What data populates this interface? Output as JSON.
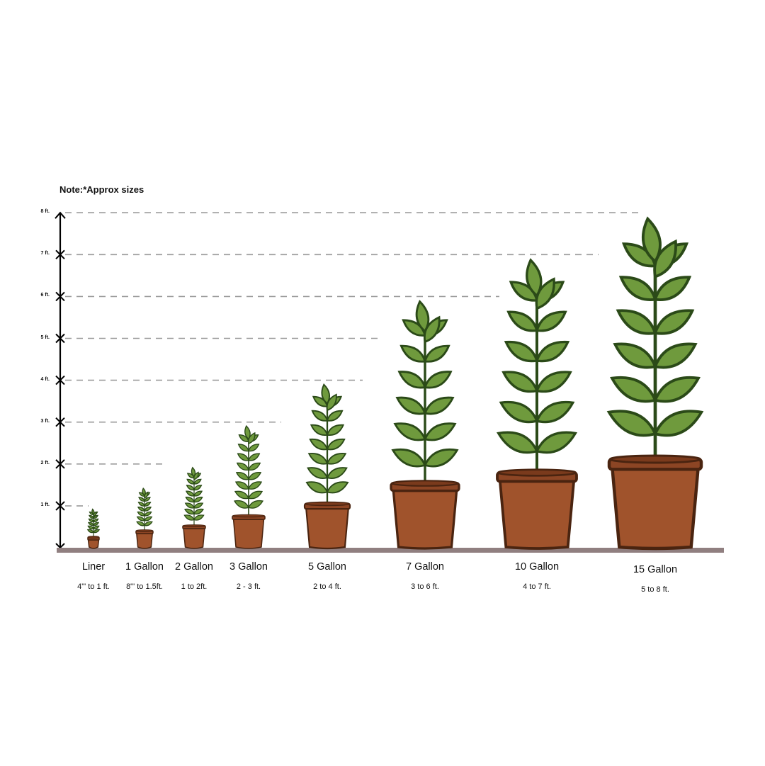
{
  "note": "Note:*Approx sizes",
  "axis": {
    "ticks": [
      "1 ft.",
      "2 ft.",
      "3 ft.",
      "4 ft.",
      "5 ft.",
      "6 ft.",
      "7 ft.",
      "8 ft."
    ]
  },
  "colors": {
    "leaf": "#6f9a3d",
    "leaf_stroke": "#2b4a18",
    "pot": "#a0532c",
    "pot_rim": "#8c4524",
    "pot_stroke": "#4a2410",
    "ground": "#907f80",
    "dash": "#9a9a9a"
  },
  "sizes": [
    {
      "name": "Liner",
      "range": "4\"' to 1 ft.",
      "min_ft": 0.33,
      "max_ft": 1
    },
    {
      "name": "1 Gallon",
      "range": "8\"' to 1.5ft.",
      "min_ft": 0.67,
      "max_ft": 1.5
    },
    {
      "name": "2 Gallon",
      "range": "1 to 2ft.",
      "min_ft": 1,
      "max_ft": 2
    },
    {
      "name": "3 Gallon",
      "range": "2 - 3 ft.",
      "min_ft": 2,
      "max_ft": 3
    },
    {
      "name": "5 Gallon",
      "range": "2 to 4 ft.",
      "min_ft": 2,
      "max_ft": 4
    },
    {
      "name": "7 Gallon",
      "range": "3 to 6 ft.",
      "min_ft": 3,
      "max_ft": 6
    },
    {
      "name": "10 Gallon",
      "range": "4 to 7 ft.",
      "min_ft": 4,
      "max_ft": 7
    },
    {
      "name": "15 Gallon",
      "range": "5 to 8 ft.",
      "min_ft": 5,
      "max_ft": 8
    }
  ]
}
